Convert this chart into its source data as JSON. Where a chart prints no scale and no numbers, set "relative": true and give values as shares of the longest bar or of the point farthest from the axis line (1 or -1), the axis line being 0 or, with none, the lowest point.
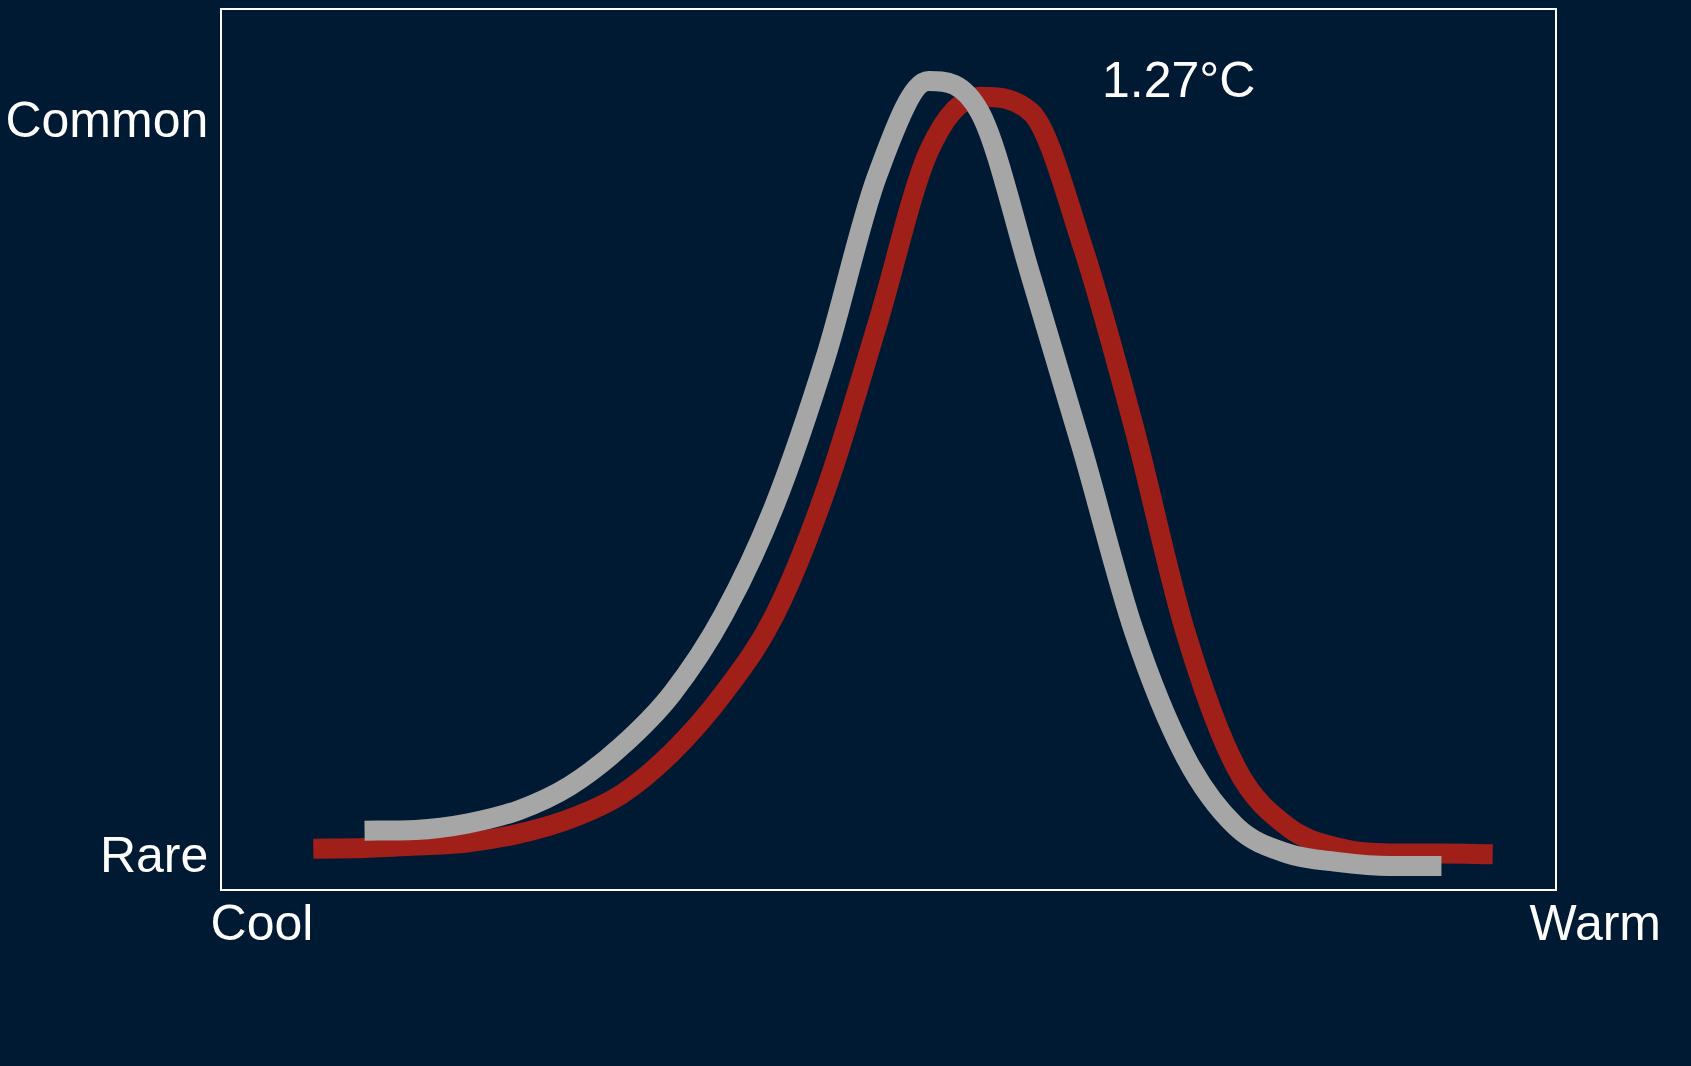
{
  "chart_data": {
    "type": "line",
    "relative": true,
    "grid": false,
    "legend": false,
    "marker": "none",
    "line_style": "solid",
    "categories": [
      "Cool",
      null,
      null,
      null,
      null,
      null,
      null,
      null,
      null,
      null,
      null,
      null,
      null,
      null,
      null,
      null,
      null,
      null,
      null,
      null,
      null,
      null,
      null,
      null,
      null,
      null,
      "Warm"
    ],
    "series": [
      {
        "color": "#a6a6a6",
        "values": [
          null,
          null,
          0.045,
          0.046,
          0.054,
          0.071,
          0.102,
          0.152,
          0.22,
          0.32,
          0.46,
          0.65,
          0.88,
          1,
          0.96,
          0.75,
          0.53,
          0.3,
          0.14,
          0.05,
          0.016,
          0.005,
          0,
          0,
          null,
          null,
          null
        ]
      },
      {
        "color": "#a01f18",
        "values": [
          null,
          0.022,
          0.023,
          0.026,
          0.03,
          0.041,
          0.06,
          0.091,
          0.145,
          0.22,
          0.32,
          0.48,
          0.69,
          0.91,
          0.98,
          0.96,
          0.79,
          0.56,
          0.3,
          0.125,
          0.05,
          0.023,
          0.016,
          0.016,
          0.015,
          null,
          null
        ]
      }
    ],
    "annotations": [
      "Common",
      "Rare",
      "1.27°C"
    ]
  }
}
